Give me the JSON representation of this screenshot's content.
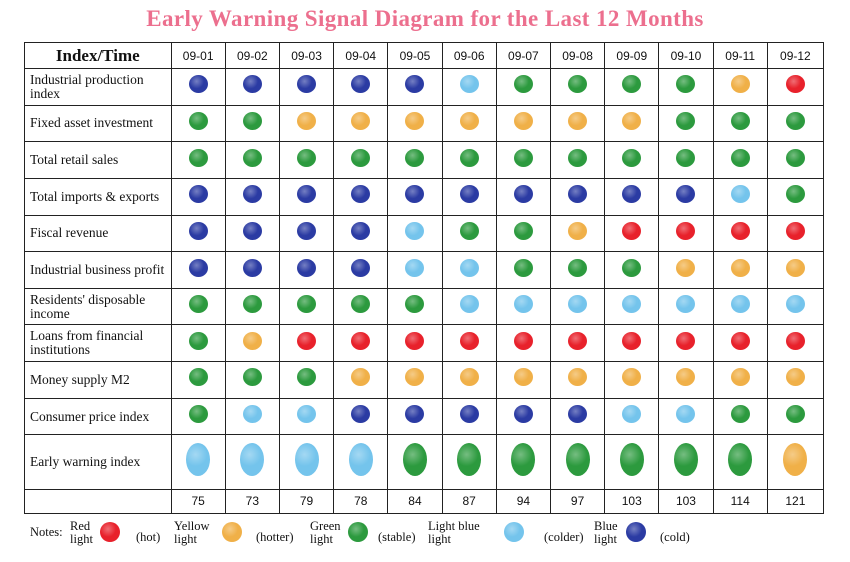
{
  "title": "Early Warning Signal Diagram for the Last 12 Months",
  "colors": {
    "red": "#e8212b",
    "yellow": "#f0b048",
    "green": "#2c9a3e",
    "lightblue": "#74c4ec",
    "blue": "#2b3ba3",
    "title": "#ec6f8e"
  },
  "chart_data": {
    "type": "table",
    "corner_label": "Index/Time",
    "months": [
      "09-01",
      "09-02",
      "09-03",
      "09-04",
      "09-05",
      "09-06",
      "09-07",
      "09-08",
      "09-09",
      "09-10",
      "09-11",
      "09-12"
    ],
    "rows": [
      {
        "label": "Industrial production index",
        "signals": [
          "blue",
          "blue",
          "blue",
          "blue",
          "blue",
          "lightblue",
          "green",
          "green",
          "green",
          "green",
          "yellow",
          "red"
        ]
      },
      {
        "label": "Fixed asset investment",
        "signals": [
          "green",
          "green",
          "yellow",
          "yellow",
          "yellow",
          "yellow",
          "yellow",
          "yellow",
          "yellow",
          "green",
          "green",
          "green"
        ]
      },
      {
        "label": "Total retail sales",
        "signals": [
          "green",
          "green",
          "green",
          "green",
          "green",
          "green",
          "green",
          "green",
          "green",
          "green",
          "green",
          "green"
        ]
      },
      {
        "label": "Total imports & exports",
        "signals": [
          "blue",
          "blue",
          "blue",
          "blue",
          "blue",
          "blue",
          "blue",
          "blue",
          "blue",
          "blue",
          "lightblue",
          "green"
        ]
      },
      {
        "label": "Fiscal revenue",
        "signals": [
          "blue",
          "blue",
          "blue",
          "blue",
          "lightblue",
          "green",
          "green",
          "yellow",
          "red",
          "red",
          "red",
          "red"
        ]
      },
      {
        "label": "Industrial business profit",
        "signals": [
          "blue",
          "blue",
          "blue",
          "blue",
          "lightblue",
          "lightblue",
          "green",
          "green",
          "green",
          "yellow",
          "yellow",
          "yellow"
        ]
      },
      {
        "label": "Residents' disposable income",
        "signals": [
          "green",
          "green",
          "green",
          "green",
          "green",
          "lightblue",
          "lightblue",
          "lightblue",
          "lightblue",
          "lightblue",
          "lightblue",
          "lightblue"
        ]
      },
      {
        "label": "Loans from financial institutions",
        "signals": [
          "green",
          "yellow",
          "red",
          "red",
          "red",
          "red",
          "red",
          "red",
          "red",
          "red",
          "red",
          "red"
        ]
      },
      {
        "label": "Money supply M2",
        "signals": [
          "green",
          "green",
          "green",
          "yellow",
          "yellow",
          "yellow",
          "yellow",
          "yellow",
          "yellow",
          "yellow",
          "yellow",
          "yellow"
        ]
      },
      {
        "label": "Consumer price index",
        "signals": [
          "green",
          "lightblue",
          "lightblue",
          "blue",
          "blue",
          "blue",
          "blue",
          "blue",
          "lightblue",
          "lightblue",
          "green",
          "green"
        ]
      }
    ],
    "early_warning": {
      "label": "Early warning index",
      "signals": [
        "lightblue",
        "lightblue",
        "lightblue",
        "lightblue",
        "green",
        "green",
        "green",
        "green",
        "green",
        "green",
        "green",
        "yellow"
      ],
      "values": [
        75,
        73,
        79,
        78,
        84,
        87,
        94,
        97,
        103,
        103,
        114,
        121
      ]
    }
  },
  "notes": {
    "label": "Notes:",
    "items": [
      {
        "name": "Red light",
        "color": "red",
        "desc": "(hot)"
      },
      {
        "name": "Yellow light",
        "color": "yellow",
        "desc": "(hotter)"
      },
      {
        "name": "Green light",
        "color": "green",
        "desc": "(stable)"
      },
      {
        "name": "Light blue light",
        "color": "lightblue",
        "desc": "(colder)"
      },
      {
        "name": "Blue light",
        "color": "blue",
        "desc": "(cold)"
      }
    ]
  }
}
